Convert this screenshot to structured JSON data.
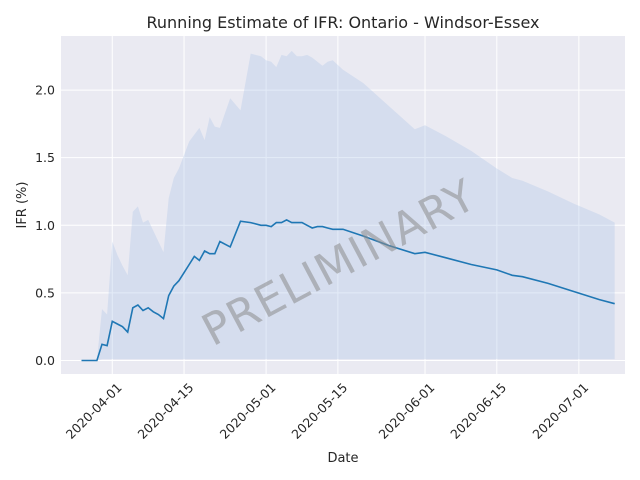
{
  "chart_data": {
    "type": "line",
    "title": "Running Estimate of IFR: Ontario - Windsor-Essex",
    "xlabel": "Date",
    "ylabel": "IFR (%)",
    "x_ticks": [
      "2020-04-01",
      "2020-04-15",
      "2020-05-01",
      "2020-05-15",
      "2020-06-01",
      "2020-06-15",
      "2020-07-01"
    ],
    "y_ticks": [
      "0.0",
      "0.5",
      "1.0",
      "1.5",
      "2.0"
    ],
    "xlim": [
      "2020-03-22",
      "2020-07-10"
    ],
    "ylim": [
      -0.1,
      2.4
    ],
    "grid": true,
    "watermark": "PRELIMINARY",
    "colors": {
      "line": "#1f77b4",
      "band": "#aec7e8",
      "background": "#eaeaf2",
      "grid": "#ffffff"
    },
    "series": [
      {
        "x": [
          "2020-03-26",
          "2020-03-27",
          "2020-03-28",
          "2020-03-29",
          "2020-03-30",
          "2020-03-31",
          "2020-04-01",
          "2020-04-02",
          "2020-04-03",
          "2020-04-04",
          "2020-04-05",
          "2020-04-06",
          "2020-04-07",
          "2020-04-08",
          "2020-04-09",
          "2020-04-10",
          "2020-04-11",
          "2020-04-12",
          "2020-04-13",
          "2020-04-14",
          "2020-04-15",
          "2020-04-16",
          "2020-04-17",
          "2020-04-18",
          "2020-04-19",
          "2020-04-20",
          "2020-04-21",
          "2020-04-22",
          "2020-04-24",
          "2020-04-26",
          "2020-04-28",
          "2020-04-30",
          "2020-05-01",
          "2020-05-02",
          "2020-05-03",
          "2020-05-04",
          "2020-05-05",
          "2020-05-06",
          "2020-05-07",
          "2020-05-08",
          "2020-05-09",
          "2020-05-10",
          "2020-05-11",
          "2020-05-12",
          "2020-05-13",
          "2020-05-14",
          "2020-05-16",
          "2020-05-20",
          "2020-05-25",
          "2020-05-30",
          "2020-06-01",
          "2020-06-05",
          "2020-06-10",
          "2020-06-15",
          "2020-06-18",
          "2020-06-20",
          "2020-06-25",
          "2020-06-30",
          "2020-07-05",
          "2020-07-08"
        ],
        "y": [
          0.0,
          0.0,
          0.0,
          0.0,
          0.12,
          0.11,
          0.29,
          0.27,
          0.25,
          0.21,
          0.39,
          0.41,
          0.37,
          0.39,
          0.36,
          0.34,
          0.31,
          0.48,
          0.55,
          0.59,
          0.65,
          0.71,
          0.77,
          0.74,
          0.81,
          0.79,
          0.79,
          0.88,
          0.84,
          1.03,
          1.02,
          1.0,
          1.0,
          0.99,
          1.02,
          1.02,
          1.04,
          1.02,
          1.02,
          1.02,
          1.0,
          0.98,
          0.99,
          0.99,
          0.98,
          0.97,
          0.97,
          0.92,
          0.85,
          0.79,
          0.8,
          0.76,
          0.71,
          0.67,
          0.63,
          0.62,
          0.57,
          0.51,
          0.45,
          0.42
        ]
      }
    ],
    "band": {
      "x": [
        "2020-03-26",
        "2020-03-29",
        "2020-03-30",
        "2020-03-31",
        "2020-04-01",
        "2020-04-02",
        "2020-04-03",
        "2020-04-04",
        "2020-04-05",
        "2020-04-06",
        "2020-04-07",
        "2020-04-08",
        "2020-04-09",
        "2020-04-10",
        "2020-04-11",
        "2020-04-12",
        "2020-04-13",
        "2020-04-14",
        "2020-04-16",
        "2020-04-18",
        "2020-04-19",
        "2020-04-20",
        "2020-04-21",
        "2020-04-22",
        "2020-04-24",
        "2020-04-26",
        "2020-04-28",
        "2020-04-30",
        "2020-05-01",
        "2020-05-02",
        "2020-05-03",
        "2020-05-04",
        "2020-05-05",
        "2020-05-06",
        "2020-05-07",
        "2020-05-08",
        "2020-05-09",
        "2020-05-10",
        "2020-05-11",
        "2020-05-12",
        "2020-05-13",
        "2020-05-14",
        "2020-05-16",
        "2020-05-20",
        "2020-05-25",
        "2020-05-30",
        "2020-06-01",
        "2020-06-05",
        "2020-06-10",
        "2020-06-15",
        "2020-06-18",
        "2020-06-20",
        "2020-06-25",
        "2020-06-30",
        "2020-07-05",
        "2020-07-08"
      ],
      "lower": [
        0.0,
        0.0,
        0.01,
        0.01,
        0.01,
        0.01,
        0.01,
        0.01,
        0.01,
        0.01,
        0.01,
        0.01,
        0.01,
        0.01,
        0.01,
        0.01,
        0.01,
        0.01,
        0.01,
        0.01,
        0.01,
        0.01,
        0.01,
        0.01,
        0.01,
        0.01,
        0.01,
        0.01,
        0.01,
        0.01,
        0.01,
        0.01,
        0.01,
        0.01,
        0.01,
        0.01,
        0.01,
        0.01,
        0.01,
        0.01,
        0.01,
        0.01,
        0.01,
        0.01,
        0.01,
        0.01,
        0.01,
        0.01,
        0.01,
        0.01,
        0.01,
        0.01,
        0.01,
        0.01,
        0.01,
        0.01
      ],
      "upper": [
        0.0,
        0.0,
        0.38,
        0.34,
        0.88,
        0.78,
        0.7,
        0.63,
        1.1,
        1.14,
        1.02,
        1.04,
        0.96,
        0.88,
        0.8,
        1.2,
        1.35,
        1.42,
        1.62,
        1.72,
        1.63,
        1.8,
        1.73,
        1.72,
        1.94,
        1.85,
        2.27,
        2.25,
        2.22,
        2.21,
        2.17,
        2.26,
        2.25,
        2.29,
        2.25,
        2.25,
        2.26,
        2.24,
        2.21,
        2.18,
        2.21,
        2.22,
        2.15,
        2.05,
        1.88,
        1.71,
        1.74,
        1.66,
        1.55,
        1.42,
        1.35,
        1.33,
        1.25,
        1.16,
        1.08,
        1.02
      ]
    }
  }
}
